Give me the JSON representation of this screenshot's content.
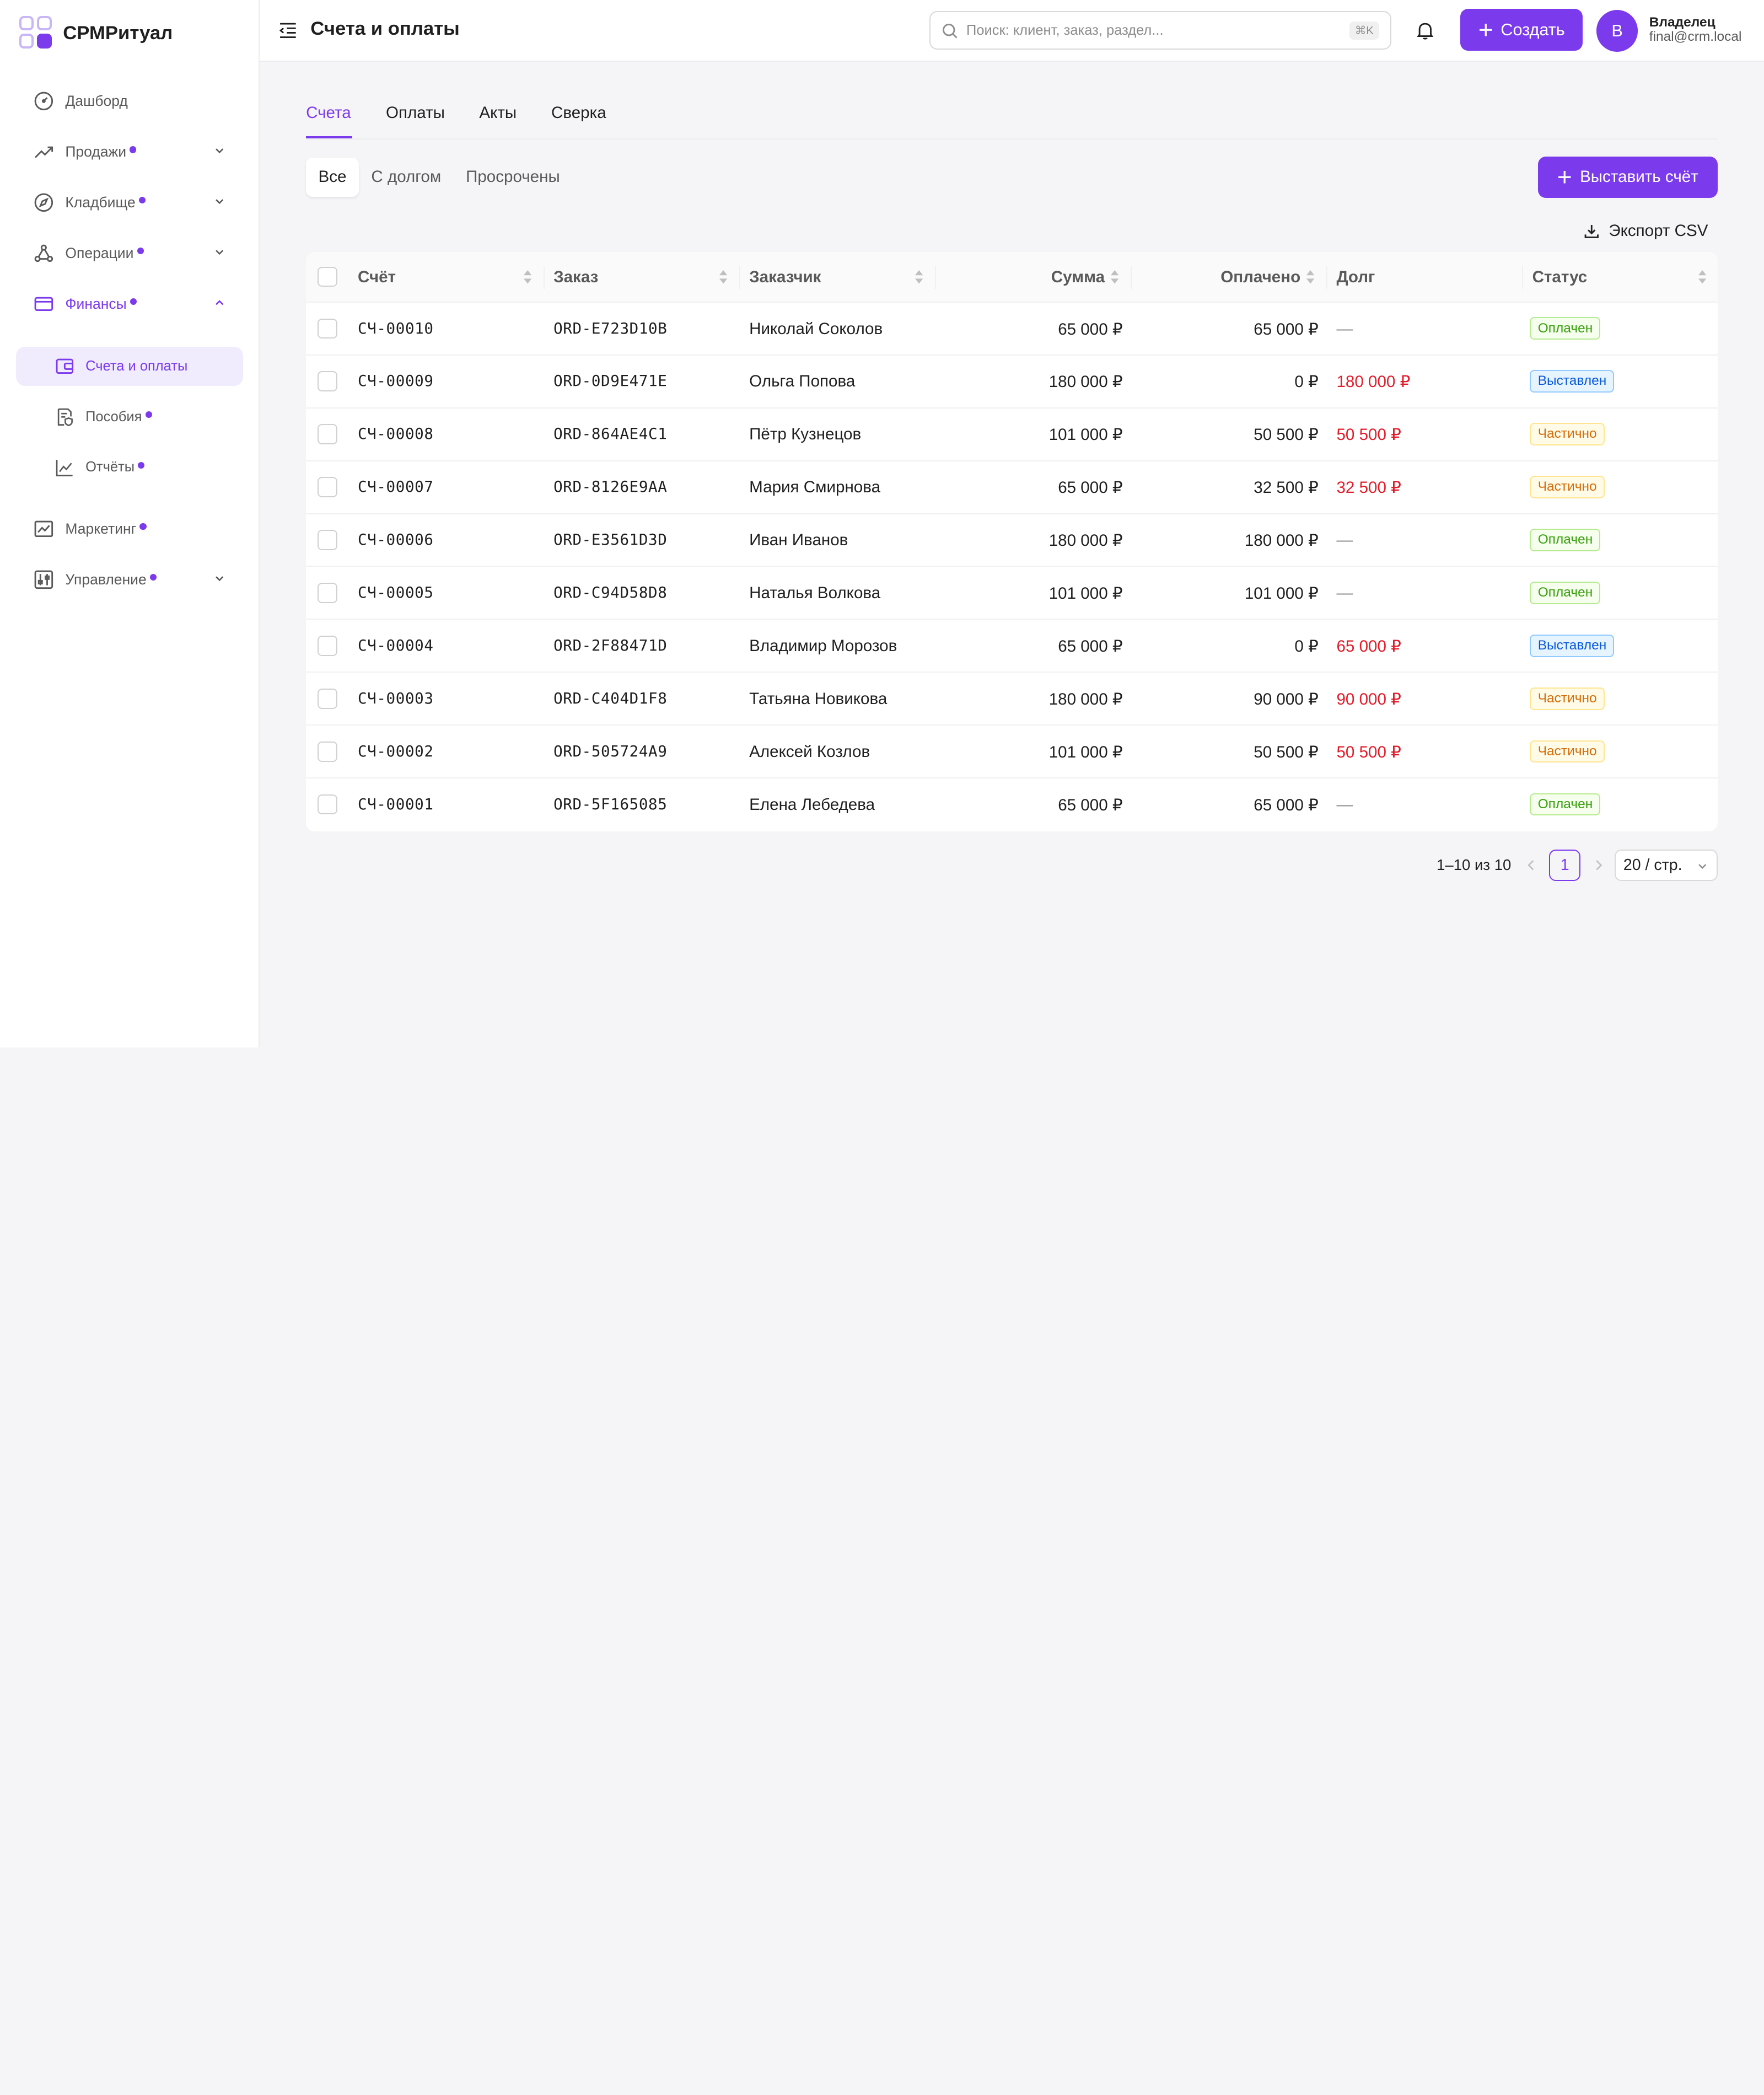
{
  "brand": {
    "name": "СРМРитуал"
  },
  "sidebar": {
    "items": [
      {
        "label": "Дашборд",
        "icon": "dashboard-icon",
        "dot": false,
        "chevron": ""
      },
      {
        "label": "Продажи",
        "icon": "trend-icon",
        "dot": true,
        "chevron": "down"
      },
      {
        "label": "Кладбище",
        "icon": "compass-icon",
        "dot": true,
        "chevron": "down"
      },
      {
        "label": "Операции",
        "icon": "nodes-icon",
        "dot": true,
        "chevron": "down"
      },
      {
        "label": "Финансы",
        "icon": "card-icon",
        "dot": true,
        "chevron": "up"
      },
      {
        "label": "Маркетинг",
        "icon": "chart-area-icon",
        "dot": true,
        "chevron": ""
      },
      {
        "label": "Управление",
        "icon": "sliders-icon",
        "dot": true,
        "chevron": "down"
      }
    ],
    "sub": [
      {
        "label": "Счета и оплаты",
        "icon": "wallet-icon",
        "dot": false
      },
      {
        "label": "Пособия",
        "icon": "document-shield-icon",
        "dot": true
      },
      {
        "label": "Отчёты",
        "icon": "line-chart-icon",
        "dot": true
      }
    ]
  },
  "header": {
    "title": "Счета и оплаты",
    "search_placeholder": "Поиск: клиент, заказ, раздел...",
    "search_shortcut": "⌘K",
    "create_label": "Создать",
    "avatar_letter": "В",
    "user_name": "Владелец",
    "user_email": "final@crm.local"
  },
  "tabs": [
    "Счета",
    "Оплаты",
    "Акты",
    "Сверка"
  ],
  "filters": [
    "Все",
    "С долгом",
    "Просрочены"
  ],
  "actions": {
    "issue_label": "Выставить счёт",
    "export_label": "Экспорт CSV"
  },
  "table": {
    "columns": [
      "Счёт",
      "Заказ",
      "Заказчик",
      "Сумма",
      "Оплачено",
      "Долг",
      "Статус"
    ],
    "rows": [
      {
        "invoice": "СЧ-00010",
        "order": "ORD-E723D10B",
        "customer": "Николай Соколов",
        "amount": "65 000 ₽",
        "paid": "65 000 ₽",
        "debt": "—",
        "status": "Оплачен",
        "status_kind": "paid"
      },
      {
        "invoice": "СЧ-00009",
        "order": "ORD-0D9E471E",
        "customer": "Ольга Попова",
        "amount": "180 000 ₽",
        "paid": "0 ₽",
        "debt": "180 000 ₽",
        "status": "Выставлен",
        "status_kind": "issued"
      },
      {
        "invoice": "СЧ-00008",
        "order": "ORD-864AE4C1",
        "customer": "Пётр Кузнецов",
        "amount": "101 000 ₽",
        "paid": "50 500 ₽",
        "debt": "50 500 ₽",
        "status": "Частично",
        "status_kind": "partial"
      },
      {
        "invoice": "СЧ-00007",
        "order": "ORD-8126E9AA",
        "customer": "Мария Смирнова",
        "amount": "65 000 ₽",
        "paid": "32 500 ₽",
        "debt": "32 500 ₽",
        "status": "Частично",
        "status_kind": "partial"
      },
      {
        "invoice": "СЧ-00006",
        "order": "ORD-E3561D3D",
        "customer": "Иван Иванов",
        "amount": "180 000 ₽",
        "paid": "180 000 ₽",
        "debt": "—",
        "status": "Оплачен",
        "status_kind": "paid"
      },
      {
        "invoice": "СЧ-00005",
        "order": "ORD-C94D58D8",
        "customer": "Наталья Волкова",
        "amount": "101 000 ₽",
        "paid": "101 000 ₽",
        "debt": "—",
        "status": "Оплачен",
        "status_kind": "paid"
      },
      {
        "invoice": "СЧ-00004",
        "order": "ORD-2F88471D",
        "customer": "Владимир Морозов",
        "amount": "65 000 ₽",
        "paid": "0 ₽",
        "debt": "65 000 ₽",
        "status": "Выставлен",
        "status_kind": "issued"
      },
      {
        "invoice": "СЧ-00003",
        "order": "ORD-C404D1F8",
        "customer": "Татьяна Новикова",
        "amount": "180 000 ₽",
        "paid": "90 000 ₽",
        "debt": "90 000 ₽",
        "status": "Частично",
        "status_kind": "partial"
      },
      {
        "invoice": "СЧ-00002",
        "order": "ORD-505724A9",
        "customer": "Алексей Козлов",
        "amount": "101 000 ₽",
        "paid": "50 500 ₽",
        "debt": "50 500 ₽",
        "status": "Частично",
        "status_kind": "partial"
      },
      {
        "invoice": "СЧ-00001",
        "order": "ORD-5F165085",
        "customer": "Елена Лебедева",
        "amount": "65 000 ₽",
        "paid": "65 000 ₽",
        "debt": "—",
        "status": "Оплачен",
        "status_kind": "paid"
      }
    ]
  },
  "pagination": {
    "total_text": "1–10 из 10",
    "current_page": "1",
    "page_size": "20 / стр."
  },
  "colors": {
    "accent": "#7c3aed",
    "debt": "#e11d2a"
  }
}
